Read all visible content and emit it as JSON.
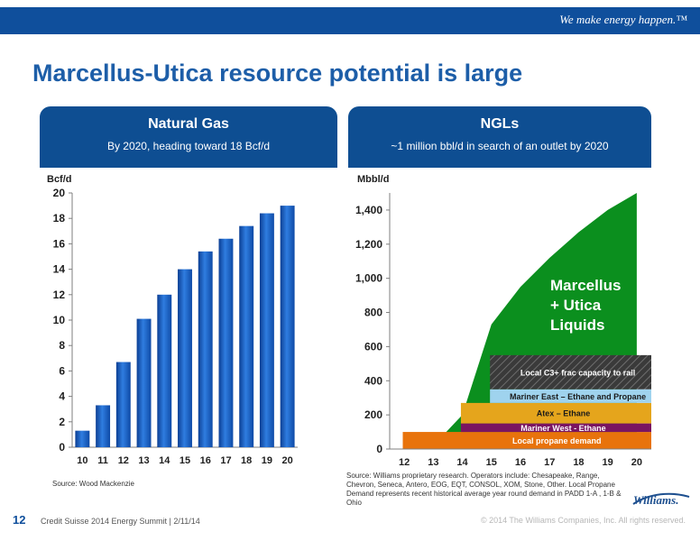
{
  "header": {
    "tagline": "We make energy happen.™"
  },
  "title": "Marcellus-Utica resource potential is large",
  "panels": {
    "left": {
      "title": "Natural Gas",
      "subtitle": "By 2020, heading toward 18 Bcf/d"
    },
    "right": {
      "title": "NGLs",
      "subtitle": "~1 million bbl/d  in search of an outlet by 2020"
    }
  },
  "chart_data": [
    {
      "type": "bar",
      "title": "",
      "ylabel": "Bcf/d",
      "xlabel": "",
      "categories": [
        "10",
        "11",
        "12",
        "13",
        "14",
        "15",
        "16",
        "17",
        "18",
        "19",
        "20"
      ],
      "values": [
        1.3,
        3.3,
        6.7,
        10.1,
        12.0,
        14.0,
        15.4,
        16.4,
        17.4,
        18.4,
        19.0
      ],
      "ylim": [
        0,
        20
      ],
      "yticks": [
        "0",
        "2",
        "4",
        "6",
        "8",
        "10",
        "12",
        "14",
        "16",
        "18",
        "20"
      ],
      "grid": false,
      "bar_color": "#1b62c6"
    },
    {
      "type": "area",
      "title": "",
      "ylabel": "Mbbl/d",
      "xlabel": "",
      "categories": [
        "12",
        "13",
        "14",
        "15",
        "16",
        "17",
        "18",
        "19",
        "20"
      ],
      "yticks": [
        "0",
        "200",
        "400",
        "600",
        "800",
        "1,000",
        "1,200",
        "1,400"
      ],
      "ylim": [
        0,
        1500
      ],
      "grid": false,
      "supply_series": {
        "label_lines": [
          "Marcellus",
          "+ Utica",
          "Liquids"
        ],
        "color": "#0b8f1e",
        "x": [
          "12",
          "13",
          "14",
          "15",
          "16",
          "17",
          "18",
          "19",
          "20"
        ],
        "values": [
          0,
          20,
          200,
          730,
          950,
          1120,
          1270,
          1400,
          1500
        ]
      },
      "outlets": [
        {
          "label": "Local propane demand",
          "from": 0,
          "to": 100,
          "start_x": "12",
          "color": "#e8730c"
        },
        {
          "label": "Mariner West - Ethane",
          "from": 100,
          "to": 150,
          "start_x": "14",
          "color": "#7a1561"
        },
        {
          "label": "Atex – Ethane",
          "from": 150,
          "to": 270,
          "start_x": "14",
          "color": "#e5a51c"
        },
        {
          "label": "Mariner East – Ethane and Propane",
          "from": 270,
          "to": 350,
          "start_x": "15",
          "color": "#9fd3ee"
        },
        {
          "label": "Local C3+ frac capacity to rail",
          "from": 350,
          "to": 550,
          "start_x": "15",
          "color": "#3b3b3b",
          "pattern": "hatched"
        }
      ]
    }
  ],
  "sources": {
    "left": "Source:  Wood  Mackenzie",
    "right": "Source:  Williams proprietary  research.  Operators  include:  Chesapeake,   Range, Chevron,  Seneca,  Antero,  EOG,  EQT,  CONSOL,  XOM,  Stone,  Other.  Local Propane  Demand  represents   recent  historical average  year  round  demand  in PADD 1-A , 1-B & Ohio"
  },
  "footer": {
    "page_number": "12",
    "event": "Credit Suisse 2014 Energy Summit   |  2/11/14",
    "copyright": "© 2014 The Williams Companies, Inc. All rights reserved.",
    "logo": "Williams."
  }
}
